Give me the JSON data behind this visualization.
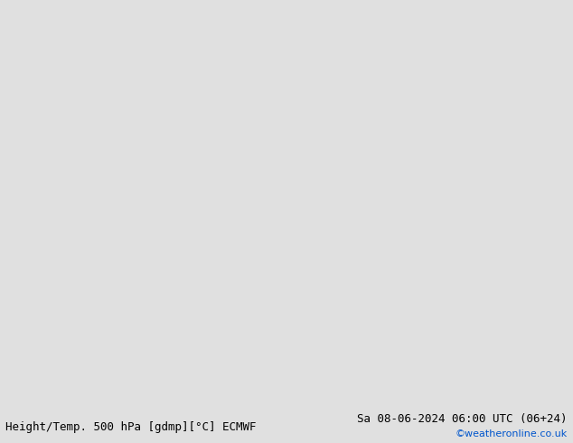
{
  "title_left": "Height/Temp. 500 hPa [gdmp][°C] ECMWF",
  "title_right": "Sa 08-06-2024 06:00 UTC (06+24)",
  "watermark": "©weatheronline.co.uk",
  "bg_color": "#e0e0e0",
  "map_bg": "#d8d8d8",
  "land_green": "#b8e8a0",
  "land_gray": "#c8c8c8",
  "ocean_color": "#d4d4d4",
  "contour_black": "#000000",
  "contour_red": "#cc0000",
  "contour_orange": "#e07800",
  "contour_cyan": "#00b8c8",
  "contour_yellow_green": "#90c800",
  "label_fontsize": 8,
  "title_fontsize": 9,
  "watermark_fontsize": 8,
  "watermark_color": "#0055cc",
  "fig_width": 6.34,
  "fig_height": 4.9,
  "dpi": 100,
  "extent": [
    90,
    200,
    -60,
    10
  ]
}
